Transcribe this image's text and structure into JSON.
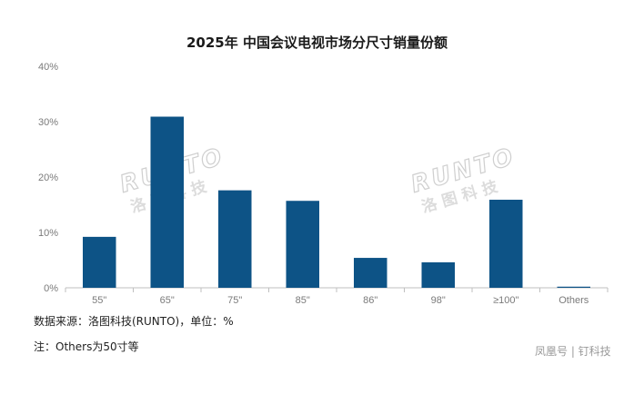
{
  "chart_data": {
    "type": "bar",
    "title": "2025年 中国会议电视市场分尺寸销量份额",
    "categories": [
      "55\"",
      "65\"",
      "75\"",
      "85\"",
      "86\"",
      "98\"",
      "≥100\"",
      "Others"
    ],
    "values": [
      9.2,
      30.9,
      17.6,
      15.7,
      5.4,
      4.6,
      15.9,
      0.2
    ],
    "ylim": [
      0,
      40
    ],
    "yticks": [
      "0%",
      "10%",
      "20%",
      "30%",
      "40%"
    ],
    "bar_color": "#0d5386",
    "grid": false
  },
  "watermark": {
    "logo": "RUNTO",
    "sub": "洛图科技"
  },
  "source_note": "数据来源：洛图科技(RUNTO)，单位：%",
  "footnote": "注：Others为50寸等",
  "credit": "凤凰号 | 钉科技"
}
